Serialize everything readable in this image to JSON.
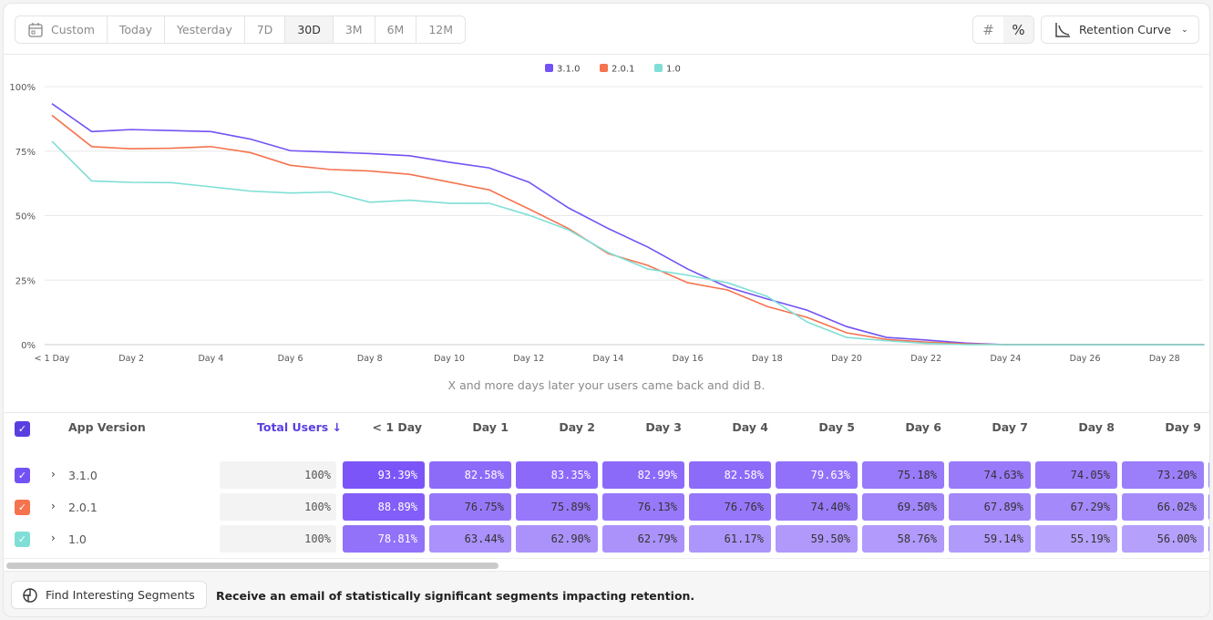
{
  "toolbar": {
    "date_ranges": [
      "Custom",
      "Today",
      "Yesterday",
      "7D",
      "30D",
      "3M",
      "6M",
      "12M"
    ],
    "active_range": "30D",
    "count_toggle": "#",
    "percent_toggle": "%",
    "chart_type": "Retention Curve",
    "calendar_icon": "calendar-icon",
    "chevron_icon": "chevron-down-icon"
  },
  "chart_data": {
    "type": "line",
    "title": "",
    "xlabel": "",
    "ylabel": "",
    "ylim": [
      0,
      100
    ],
    "grid": true,
    "legend": "top-center",
    "y_ticks": [
      "0%",
      "25%",
      "50%",
      "75%",
      "100%"
    ],
    "x_ticks": [
      "< 1 Day",
      "Day 2",
      "Day 4",
      "Day 6",
      "Day 8",
      "Day 10",
      "Day 12",
      "Day 14",
      "Day 16",
      "Day 18",
      "Day 20",
      "Day 22",
      "Day 24",
      "Day 26",
      "Day 28"
    ],
    "x": [
      0,
      1,
      2,
      3,
      4,
      5,
      6,
      7,
      8,
      9,
      10,
      11,
      12,
      13,
      14,
      15,
      16,
      17,
      18,
      19,
      20,
      21,
      22,
      23,
      24,
      25,
      26,
      27,
      28,
      29
    ],
    "series": [
      {
        "name": "3.1.0",
        "color": "#7352f5",
        "values": [
          93.39,
          82.58,
          83.35,
          82.99,
          82.58,
          79.63,
          75.18,
          74.63,
          74.05,
          73.2,
          70.7,
          68.5,
          63,
          53,
          45,
          37.8,
          29.3,
          22.3,
          17.7,
          13.4,
          7,
          2.8,
          1.8,
          0.6,
          0,
          0,
          0,
          0,
          0,
          0
        ]
      },
      {
        "name": "2.0.1",
        "color": "#f5734f",
        "values": [
          88.89,
          76.75,
          75.89,
          76.13,
          76.76,
          74.4,
          69.5,
          67.89,
          67.29,
          66.02,
          63,
          60,
          52.6,
          45,
          35.3,
          30.7,
          24,
          21.2,
          14.8,
          10.6,
          4.6,
          2,
          1,
          0.3,
          0,
          0,
          0,
          0,
          0,
          0
        ]
      },
      {
        "name": "1.0",
        "color": "#7fdfd6",
        "values": [
          78.81,
          63.44,
          62.9,
          62.79,
          61.17,
          59.5,
          58.76,
          59.14,
          55.19,
          56,
          54.8,
          54.8,
          50.2,
          44.5,
          35.7,
          29.3,
          26.9,
          24,
          18.7,
          8.8,
          2.8,
          1.5,
          0.5,
          0,
          0,
          0,
          0,
          0,
          0,
          0
        ]
      }
    ]
  },
  "chart_caption": "X and more days later your users came back and did B.",
  "table": {
    "columns": {
      "name": "App Version",
      "total": "Total Users ↓",
      "days": [
        "< 1 Day",
        "Day 1",
        "Day 2",
        "Day 3",
        "Day 4",
        "Day 5",
        "Day 6",
        "Day 7",
        "Day 8",
        "Day 9"
      ]
    },
    "rows": [
      {
        "label": "3.1.0",
        "color": "#7352f5",
        "total": "100%",
        "cells": [
          "93.39%",
          "82.58%",
          "83.35%",
          "82.99%",
          "82.58%",
          "79.63%",
          "75.18%",
          "74.63%",
          "74.05%",
          "73.20%"
        ]
      },
      {
        "label": "2.0.1",
        "color": "#f5734f",
        "total": "100%",
        "cells": [
          "88.89%",
          "76.75%",
          "75.89%",
          "76.13%",
          "76.76%",
          "74.40%",
          "69.50%",
          "67.89%",
          "67.29%",
          "66.02%"
        ]
      },
      {
        "label": "1.0",
        "color": "#7fdfd6",
        "total": "100%",
        "cells": [
          "78.81%",
          "63.44%",
          "62.90%",
          "62.79%",
          "61.17%",
          "59.50%",
          "58.76%",
          "59.14%",
          "55.19%",
          "56.00%"
        ]
      }
    ]
  },
  "footer": {
    "button": "Find Interesting Segments",
    "text": "Receive an email of statistically significant segments impacting retention."
  }
}
